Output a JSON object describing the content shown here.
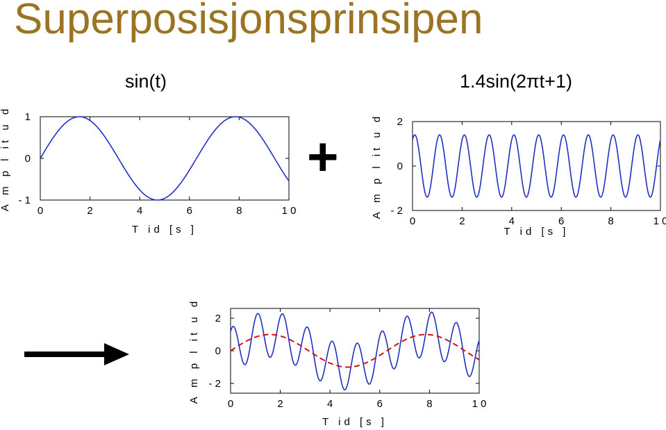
{
  "slide": {
    "title": "Superposisjonsprinsipen",
    "left_formula": "sin(t)",
    "right_formula": "1.4sin(2πt+1)",
    "operator": "+"
  },
  "colors": {
    "title": "#9a7422",
    "signal": "#1f2fbf",
    "envelope": "#d01010",
    "arrow": "#000000"
  },
  "icons": [
    "plus-icon",
    "right-arrow-icon"
  ],
  "chart_data": [
    {
      "type": "line",
      "xlabel": "T id  [s ]",
      "ylabel": "A m p l it u d",
      "xlim": [
        0,
        10
      ],
      "ylim": [
        -1,
        1
      ],
      "xticks": [
        0,
        2,
        4,
        6,
        8,
        10
      ],
      "xtick_labels": [
        "0",
        "2",
        "4",
        "6",
        "8",
        "1 0"
      ],
      "yticks": [
        -1,
        0,
        1
      ],
      "ytick_labels": [
        "- 1",
        "0",
        "1"
      ],
      "series": [
        {
          "function": "sin(t)",
          "style": "solid",
          "color": "#1f2fbf"
        }
      ]
    },
    {
      "type": "line",
      "xlabel": "T id  [s ]",
      "ylabel": "A m p l it u d",
      "xlim": [
        0,
        10
      ],
      "ylim": [
        -2,
        2
      ],
      "xticks": [
        0,
        2,
        4,
        6,
        8,
        10
      ],
      "xtick_labels": [
        "0",
        "2",
        "4",
        "6",
        "8",
        "1 0"
      ],
      "yticks": [
        -2,
        0,
        2
      ],
      "ytick_labels": [
        "- 2",
        "0",
        "2"
      ],
      "series": [
        {
          "function": "1.4sin(2πt+1)",
          "style": "solid",
          "color": "#1f2fbf"
        }
      ]
    },
    {
      "type": "line",
      "xlabel": "T id  [s ]",
      "ylabel": "A m p l it u d",
      "xlim": [
        0,
        10
      ],
      "ylim": [
        -2.6,
        2.6
      ],
      "xticks": [
        0,
        2,
        4,
        6,
        8,
        10
      ],
      "xtick_labels": [
        "0",
        "2",
        "4",
        "6",
        "8",
        "1 0"
      ],
      "yticks": [
        -2,
        0,
        2
      ],
      "ytick_labels": [
        "- 2",
        "0",
        "2"
      ],
      "series": [
        {
          "function": "sin(t) + 1.4sin(2πt+1)",
          "style": "solid",
          "color": "#1f2fbf"
        },
        {
          "function": "sin(t)",
          "style": "dashed",
          "color": "#d01010"
        }
      ]
    }
  ]
}
